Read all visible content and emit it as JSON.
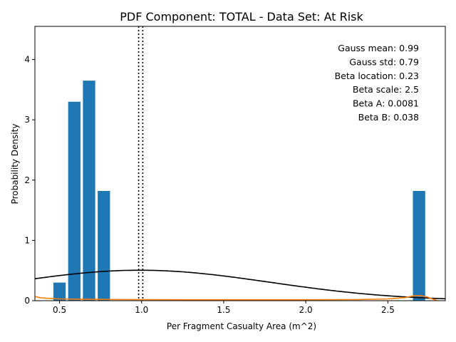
{
  "chart_data": {
    "type": "bar",
    "title": "PDF Component: TOTAL - Data Set: At Risk",
    "xlabel": "Per Fragment Casualty Area (m^2)",
    "ylabel": "Probability Density",
    "xlim": [
      0.35,
      2.85
    ],
    "ylim": [
      0,
      4.55
    ],
    "grid": false,
    "x_ticks": [
      0.5,
      1.0,
      1.5,
      2.0,
      2.5
    ],
    "x_tick_labels": [
      "0.5",
      "1.0",
      "1.5",
      "2.0",
      "2.5"
    ],
    "y_ticks": [
      0,
      1,
      2,
      3,
      4
    ],
    "y_tick_labels": [
      "0",
      "1",
      "2",
      "3",
      "4"
    ],
    "bar_width": 0.075,
    "bar_color": "#1f77b4",
    "bars": [
      {
        "x": 0.5,
        "value": 0.3
      },
      {
        "x": 0.59,
        "value": 3.3
      },
      {
        "x": 0.68,
        "value": 3.65
      },
      {
        "x": 0.77,
        "value": 1.82
      },
      {
        "x": 2.69,
        "value": 1.82
      }
    ],
    "mean_lines": [
      0.982,
      1.007
    ],
    "gauss_curve": {
      "color": "#000000",
      "mean": 0.99,
      "std": 0.79
    },
    "beta_curve": {
      "color": "#ff7f0e",
      "points": [
        [
          0.35,
          0.07
        ],
        [
          0.38,
          0.05
        ],
        [
          0.42,
          0.04
        ],
        [
          0.5,
          0.03
        ],
        [
          0.6,
          0.025
        ],
        [
          0.8,
          0.02
        ],
        [
          1.0,
          0.017
        ],
        [
          1.5,
          0.015
        ],
        [
          2.0,
          0.015
        ],
        [
          2.3,
          0.018
        ],
        [
          2.5,
          0.03
        ],
        [
          2.6,
          0.05
        ],
        [
          2.66,
          0.08
        ],
        [
          2.7,
          0.085
        ],
        [
          2.74,
          0.06
        ],
        [
          2.78,
          0.02
        ],
        [
          2.8,
          0.0
        ]
      ]
    },
    "annotations": [
      "Gauss mean: 0.99",
      "Gauss std: 0.79",
      "Beta location: 0.23",
      "Beta scale: 2.5",
      "Beta A: 0.0081",
      "Beta B: 0.038"
    ]
  }
}
